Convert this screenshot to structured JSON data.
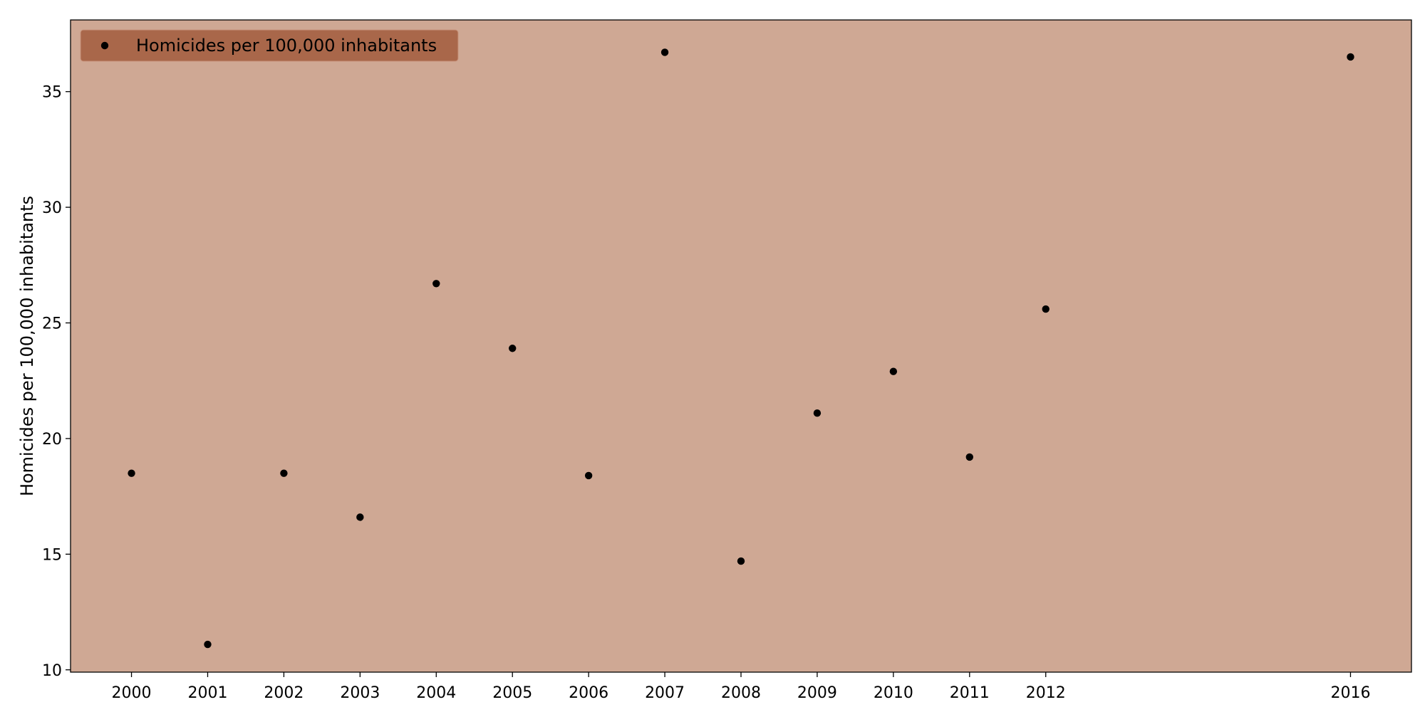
{
  "chart_data": {
    "type": "scatter",
    "title": "",
    "xlabel": "",
    "ylabel": "Homicides per 100,000 inhabitants",
    "xticks": [
      2000,
      2001,
      2002,
      2003,
      2004,
      2005,
      2006,
      2007,
      2008,
      2009,
      2010,
      2011,
      2012,
      2016
    ],
    "yticks": [
      10,
      15,
      20,
      25,
      30,
      35
    ],
    "xlim": [
      1999.2,
      2016.8
    ],
    "ylim": [
      9.9,
      38.1
    ],
    "grid": false,
    "legend_position": "top-left",
    "colors": {
      "plot_background": "#cfa894",
      "legend_background": "#a9674a",
      "marker": "#000000",
      "axis": "#000000"
    },
    "series": [
      {
        "name": "Homicides per 100,000 inhabitants",
        "x": [
          2000,
          2001,
          2002,
          2003,
          2004,
          2005,
          2006,
          2007,
          2008,
          2009,
          2010,
          2011,
          2012,
          2016
        ],
        "y": [
          18.5,
          11.1,
          18.5,
          16.6,
          26.7,
          23.9,
          18.4,
          36.7,
          14.7,
          21.1,
          22.9,
          19.2,
          25.6,
          36.5
        ]
      }
    ]
  }
}
